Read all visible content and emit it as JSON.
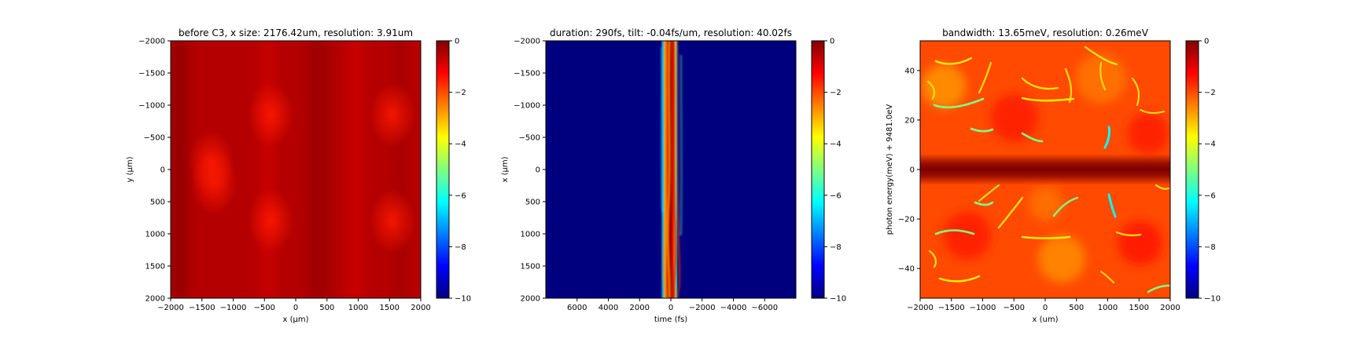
{
  "colors": {
    "jet": [
      "#00007f",
      "#0000ff",
      "#007fff",
      "#00ffff",
      "#7fff7f",
      "#ffff00",
      "#ff7f00",
      "#ff0000",
      "#7f0000"
    ]
  },
  "chart_data": [
    {
      "type": "heatmap",
      "title": "before C3, x size: 2176.42um, resolution: 3.91um",
      "xlabel": "x (μm)",
      "ylabel": "y (μm)",
      "xlim": [
        -2000,
        2000
      ],
      "ylim": [
        2000,
        -2000
      ],
      "xticks": [
        -2000,
        -1500,
        -1000,
        -500,
        0,
        500,
        1000,
        1500,
        2000
      ],
      "yticks": [
        2000,
        1500,
        1000,
        500,
        0,
        -500,
        -1000,
        -1500,
        -2000
      ],
      "colorbar": {
        "min": -10,
        "max": 0,
        "ticks": [
          0,
          -2,
          -4,
          -6,
          -8,
          -10
        ]
      },
      "pattern": "mottled red, near-uniform around -0.5 with brighter spots",
      "hotspots": [
        {
          "x": -1350,
          "y": -100,
          "value": -1.0
        },
        {
          "x": -1300,
          "y": 200,
          "value": -1.0
        },
        {
          "x": -400,
          "y": -850,
          "value": -1.0
        },
        {
          "x": -400,
          "y": 800,
          "value": -1.1
        },
        {
          "x": 1550,
          "y": -850,
          "value": -1.1
        },
        {
          "x": 1550,
          "y": 800,
          "value": -1.1
        }
      ]
    },
    {
      "type": "heatmap",
      "title": "duration: 290fs, tilt: -0.04fs/um, resolution: 40.02fs",
      "xlabel": "time (fs)",
      "ylabel": "x (μm)",
      "xlim": [
        8000,
        -8000
      ],
      "ylim": [
        2000,
        -2000
      ],
      "xticks": [
        6000,
        4000,
        2000,
        0,
        -2000,
        -4000,
        -6000
      ],
      "yticks": [
        -2000,
        -1500,
        -1000,
        -500,
        0,
        500,
        1000,
        1500,
        2000
      ],
      "colorbar": {
        "min": -10,
        "max": 0,
        "ticks": [
          0,
          -2,
          -4,
          -6,
          -8,
          -10
        ]
      },
      "pattern": "narrow vertical pulse band centered near t=0 fs, background -10",
      "band": {
        "t_min": -450,
        "t_max": 650,
        "peak_t": -50,
        "peak_value": 0
      }
    },
    {
      "type": "heatmap",
      "title": "bandwidth: 13.65meV, resolution: 0.26meV",
      "xlabel": "x (um)",
      "ylabel": "photon energy(meV) + 9481.0eV",
      "xlim": [
        -2000,
        2000
      ],
      "ylim": [
        -52,
        52
      ],
      "xticks": [
        -2000,
        -1500,
        -1000,
        -500,
        0,
        500,
        1000,
        1500,
        2000
      ],
      "yticks": [
        40,
        20,
        0,
        -20,
        -40
      ],
      "colorbar": {
        "min": -10,
        "max": 0,
        "ticks": [
          0,
          -2,
          -4,
          -6,
          -8,
          -10
        ]
      },
      "pattern": "dark-red horizontal band at 0 meV over red/orange background with yellow-green filaments",
      "band_center": 0,
      "band_value": 0
    }
  ]
}
